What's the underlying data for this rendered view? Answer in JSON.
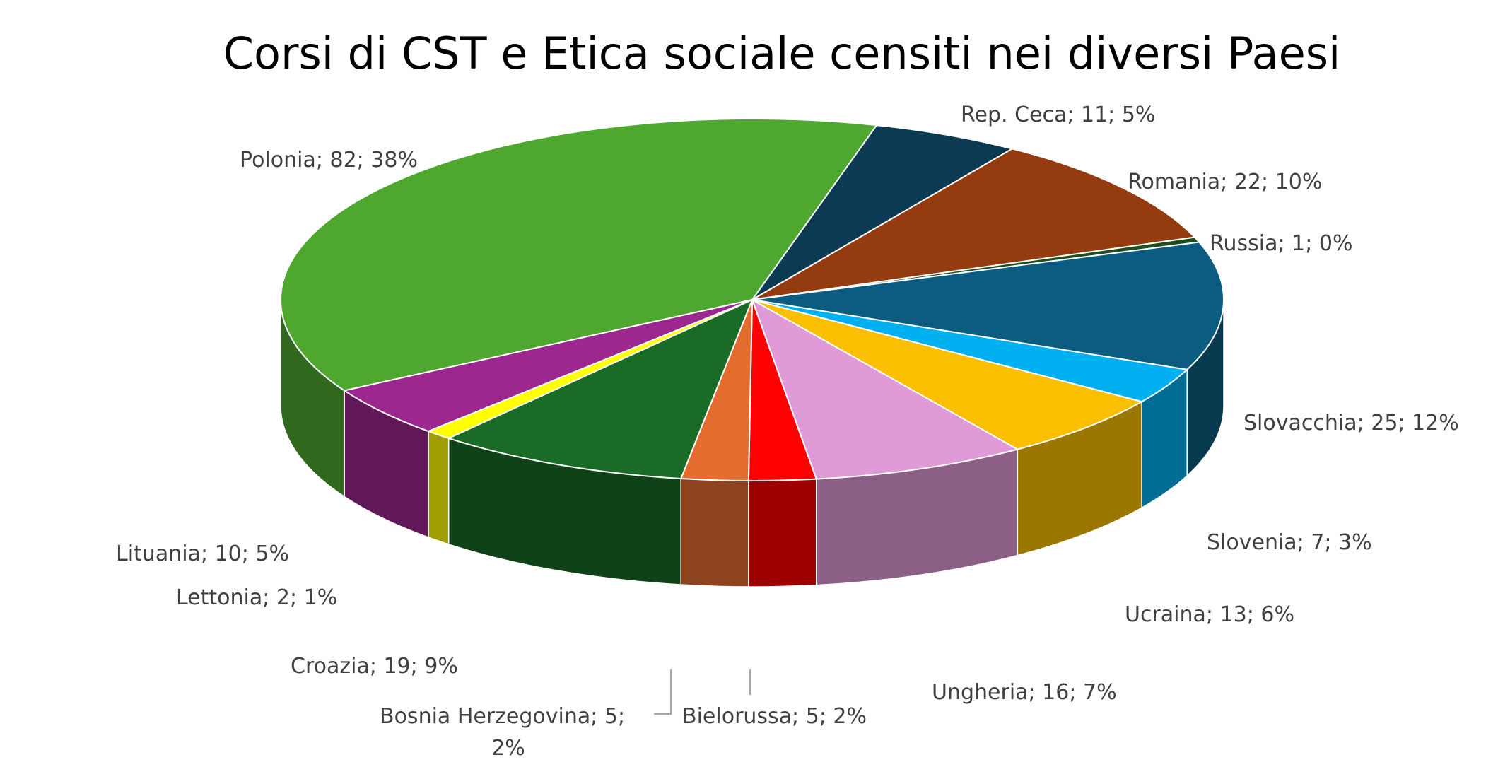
{
  "chart_data": {
    "type": "pie",
    "style": "3d",
    "title": "Corsi di CST e Etica sociale censiti nei diversi Paesi",
    "label_format": "category; value; percent",
    "legend": "none",
    "slices": [
      {
        "label": "Rep. Ceca",
        "value": 11,
        "percent": "5%",
        "color": "#0c3a52"
      },
      {
        "label": "Romania",
        "value": 22,
        "percent": "10%",
        "color": "#943c0f"
      },
      {
        "label": "Russia",
        "value": 1,
        "percent": "0%",
        "color": "#1e4d1e"
      },
      {
        "label": "Slovacchia",
        "value": 25,
        "percent": "12%",
        "color": "#0b5c80"
      },
      {
        "label": "Slovenia",
        "value": 7,
        "percent": "3%",
        "color": "#00b0f0"
      },
      {
        "label": "Ucraina",
        "value": 13,
        "percent": "6%",
        "color": "#fac000"
      },
      {
        "label": "Ungheria",
        "value": 16,
        "percent": "7%",
        "color": "#e09ad8"
      },
      {
        "label": "Bielorussa",
        "value": 5,
        "percent": "2%",
        "color": "#ff0000"
      },
      {
        "label": "Bosnia Herzegovina",
        "value": 5,
        "percent": "2%",
        "color": "#e46c2e"
      },
      {
        "label": "Croazia",
        "value": 19,
        "percent": "9%",
        "color": "#1a6b25"
      },
      {
        "label": "Lettonia",
        "value": 2,
        "percent": "1%",
        "color": "#ffff00"
      },
      {
        "label": "Lituania",
        "value": 10,
        "percent": "5%",
        "color": "#9b278f"
      },
      {
        "label": "Polonia",
        "value": 82,
        "percent": "38%",
        "color": "#4ea72e"
      }
    ]
  }
}
